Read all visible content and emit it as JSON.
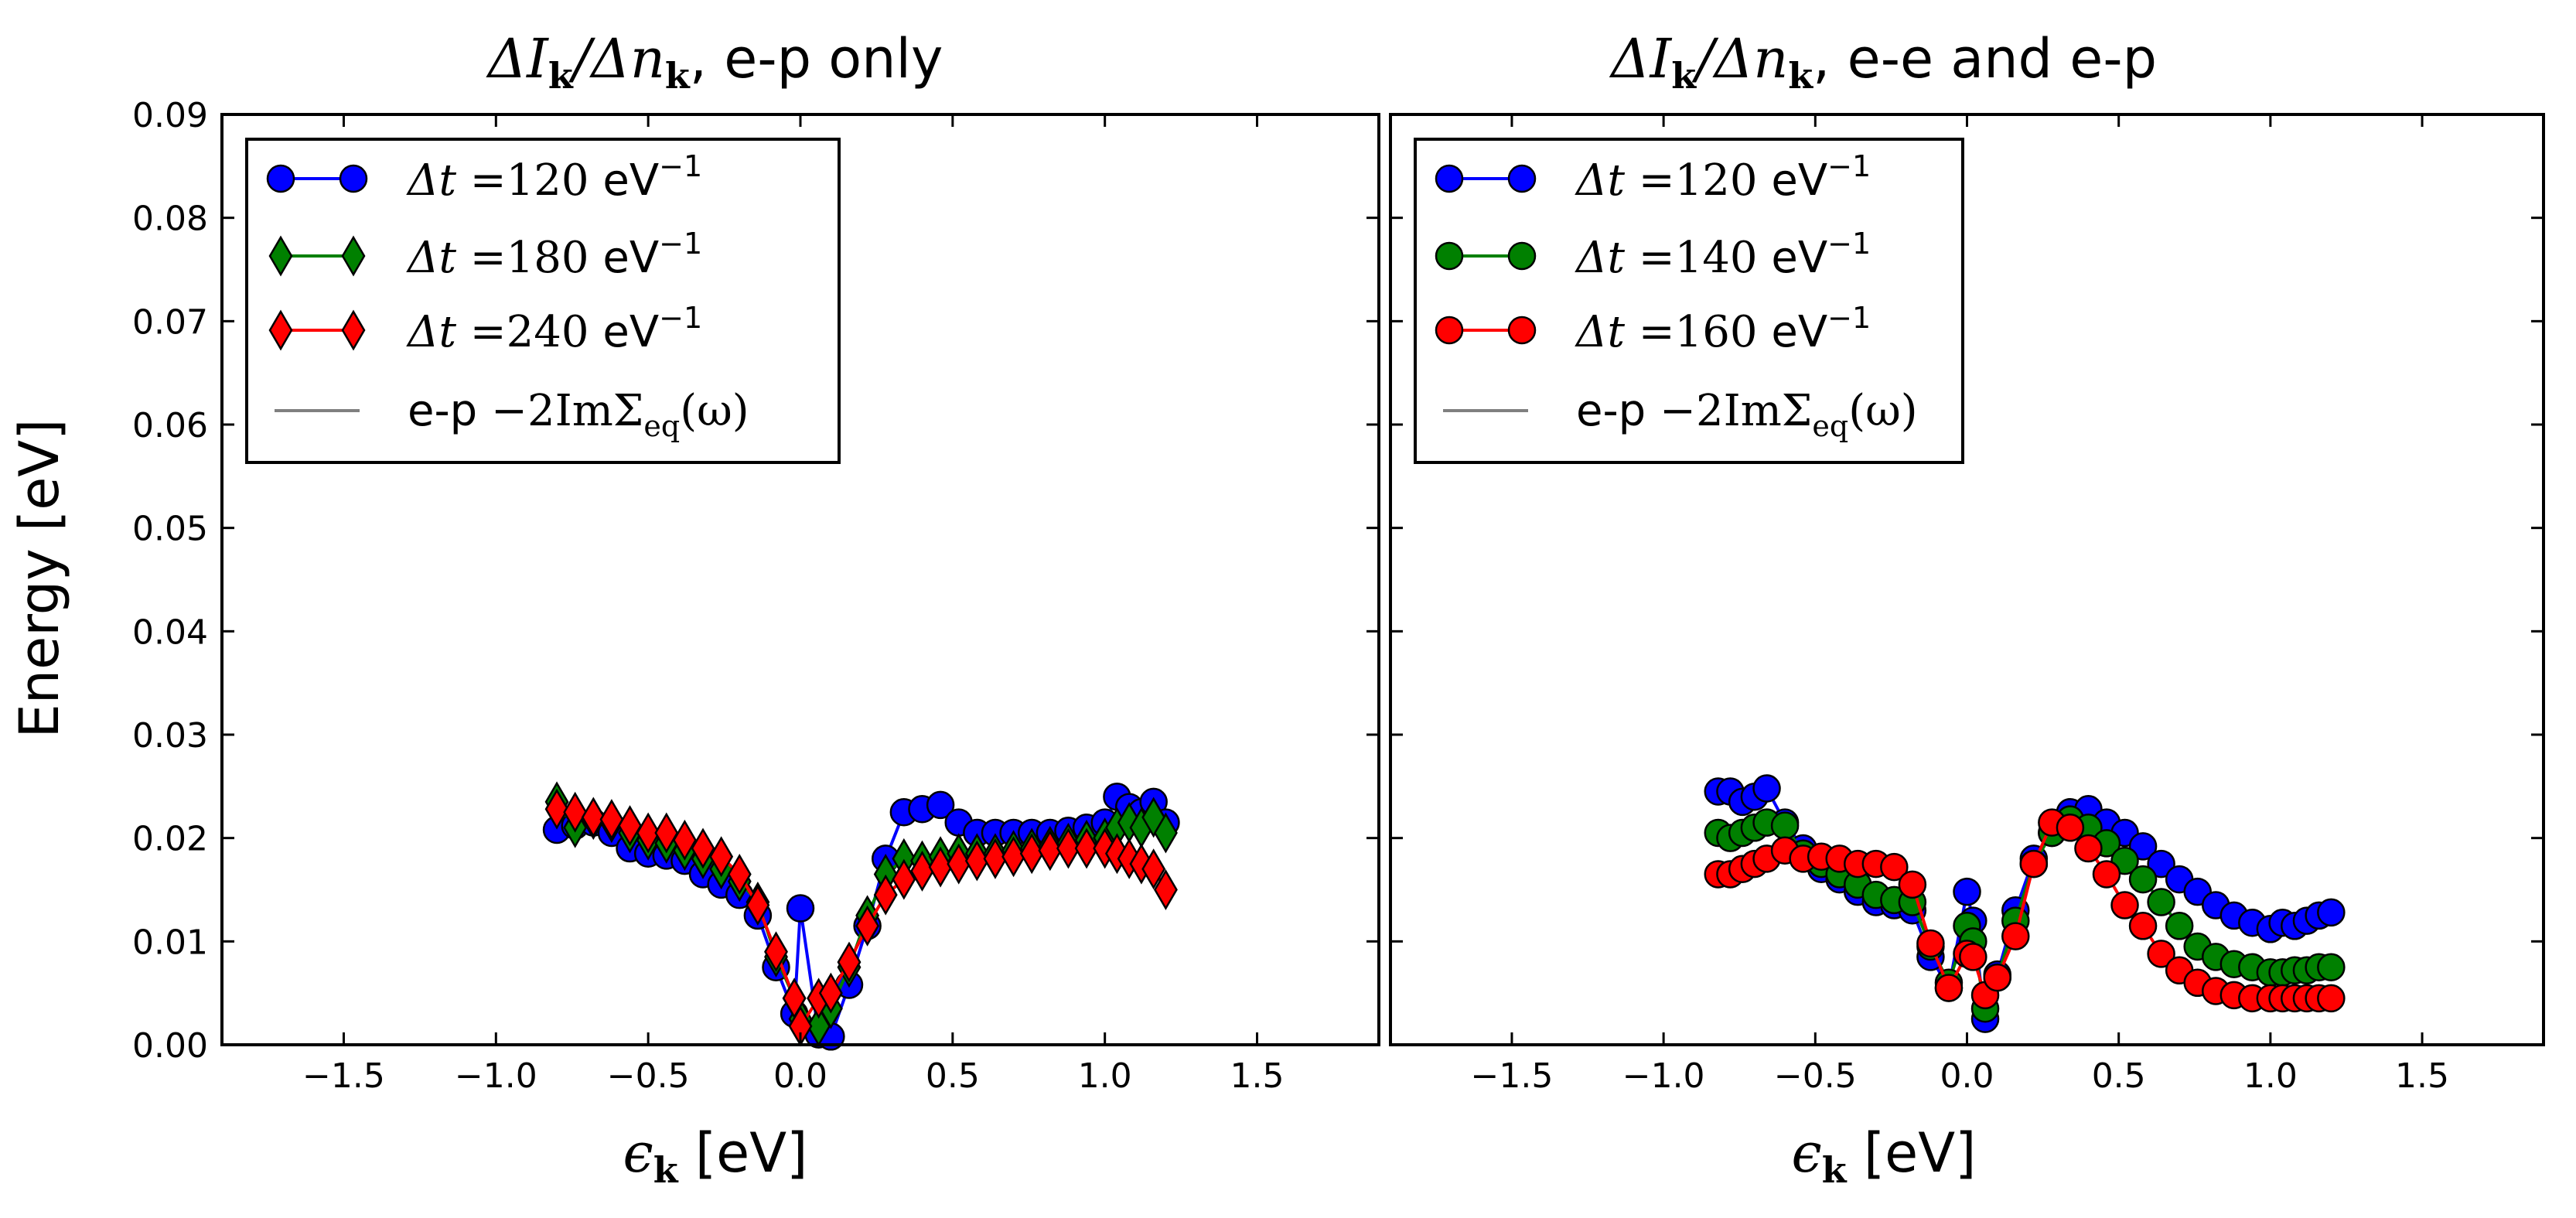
{
  "figure": {
    "ylabel": "Energy [eV]"
  },
  "chart_data": [
    {
      "type": "line",
      "title_math": "ΔI",
      "title_sub": "k",
      "title_mid": "/Δn",
      "title_sub2": "k",
      "title_rest": ", e-p only",
      "xlabel_math": "ϵ",
      "xlabel_sub": "k",
      "xlabel_rest": " [eV]",
      "xlim": [
        -1.9,
        1.9
      ],
      "ylim": [
        0,
        0.09
      ],
      "xticks": [
        "−1.5",
        "−1.0",
        "−0.5",
        "0.0",
        "0.5",
        "1.0",
        "1.5"
      ],
      "xtick_values": [
        -1.5,
        -1.0,
        -0.5,
        0.0,
        0.5,
        1.0,
        1.5
      ],
      "yticks": [
        "0.00",
        "0.01",
        "0.02",
        "0.03",
        "0.04",
        "0.05",
        "0.06",
        "0.07",
        "0.08",
        "0.09"
      ],
      "ytick_values": [
        0,
        0.01,
        0.02,
        0.03,
        0.04,
        0.05,
        0.06,
        0.07,
        0.08,
        0.09
      ],
      "legend_position": "top-left",
      "grid": false,
      "series": [
        {
          "label_prefix": "Δt =",
          "label_value": "120",
          "label_unit": " eV",
          "label_sup": "−1",
          "color": "#0000ff",
          "marker": "circle",
          "x": [
            -0.8,
            -0.74,
            -0.68,
            -0.62,
            -0.56,
            -0.5,
            -0.44,
            -0.38,
            -0.32,
            -0.26,
            -0.2,
            -0.14,
            -0.08,
            -0.02,
            0.0,
            0.06,
            0.1,
            0.16,
            0.22,
            0.28,
            0.34,
            0.4,
            0.46,
            0.52,
            0.58,
            0.64,
            0.7,
            0.76,
            0.82,
            0.88,
            0.94,
            1.0,
            1.04,
            1.08,
            1.12,
            1.16,
            1.2
          ],
          "y": [
            0.0208,
            0.0212,
            0.0215,
            0.0205,
            0.019,
            0.0185,
            0.0183,
            0.0178,
            0.0165,
            0.0155,
            0.0145,
            0.0125,
            0.0075,
            0.003,
            0.0132,
            0.001,
            0.0008,
            0.0058,
            0.0115,
            0.018,
            0.0225,
            0.0228,
            0.0232,
            0.0215,
            0.0205,
            0.0205,
            0.0205,
            0.0205,
            0.0205,
            0.0207,
            0.021,
            0.0215,
            0.024,
            0.023,
            0.0225,
            0.0235,
            0.0215
          ]
        },
        {
          "label_prefix": "Δt =",
          "label_value": "180",
          "label_unit": " eV",
          "label_sup": "−1",
          "color": "#008000",
          "marker": "diamond",
          "x": [
            -0.8,
            -0.74,
            -0.68,
            -0.62,
            -0.56,
            -0.5,
            -0.44,
            -0.38,
            -0.32,
            -0.26,
            -0.2,
            -0.14,
            -0.08,
            -0.02,
            0.0,
            0.06,
            0.1,
            0.16,
            0.22,
            0.28,
            0.34,
            0.4,
            0.46,
            0.52,
            0.58,
            0.64,
            0.7,
            0.76,
            0.82,
            0.88,
            0.94,
            1.0,
            1.04,
            1.08,
            1.12,
            1.16,
            1.2
          ],
          "y": [
            0.0235,
            0.021,
            0.0218,
            0.0215,
            0.0205,
            0.0198,
            0.0195,
            0.0188,
            0.018,
            0.017,
            0.0158,
            0.0138,
            0.0085,
            0.0045,
            0.0025,
            0.0018,
            0.0035,
            0.0075,
            0.0125,
            0.0165,
            0.018,
            0.0178,
            0.0182,
            0.0185,
            0.0185,
            0.0185,
            0.0188,
            0.019,
            0.0192,
            0.0195,
            0.0198,
            0.02,
            0.021,
            0.0215,
            0.021,
            0.022,
            0.0205
          ]
        },
        {
          "label_prefix": "Δt =",
          "label_value": "240",
          "label_unit": " eV",
          "label_sup": "−1",
          "color": "#ff0000",
          "marker": "diamond",
          "x": [
            -0.8,
            -0.74,
            -0.68,
            -0.62,
            -0.56,
            -0.5,
            -0.44,
            -0.38,
            -0.32,
            -0.26,
            -0.2,
            -0.14,
            -0.08,
            -0.02,
            0.0,
            0.06,
            0.1,
            0.16,
            0.22,
            0.28,
            0.34,
            0.4,
            0.46,
            0.52,
            0.58,
            0.64,
            0.7,
            0.76,
            0.82,
            0.88,
            0.94,
            1.0,
            1.04,
            1.08,
            1.12,
            1.16,
            1.2
          ],
          "y": [
            0.0228,
            0.0225,
            0.022,
            0.0218,
            0.0212,
            0.0205,
            0.0205,
            0.0198,
            0.019,
            0.0182,
            0.0165,
            0.0135,
            0.009,
            0.0045,
            0.0018,
            0.0045,
            0.005,
            0.008,
            0.0115,
            0.0145,
            0.016,
            0.0168,
            0.0172,
            0.0175,
            0.0178,
            0.018,
            0.0182,
            0.0185,
            0.0188,
            0.019,
            0.019,
            0.019,
            0.0185,
            0.018,
            0.0175,
            0.017,
            0.015
          ]
        },
        {
          "label_prefix": "e-p ",
          "label_math": "−2ImΣ",
          "label_sub": "eq",
          "label_rest": "(ω)",
          "color": "#808080",
          "marker": "none",
          "curve": "self-energy"
        }
      ]
    },
    {
      "type": "line",
      "title_math": "ΔI",
      "title_sub": "k",
      "title_mid": "/Δn",
      "title_sub2": "k",
      "title_rest": ", e-e and e-p",
      "xlabel_math": "ϵ",
      "xlabel_sub": "k",
      "xlabel_rest": " [eV]",
      "xlim": [
        -1.9,
        1.9
      ],
      "ylim": [
        0,
        0.09
      ],
      "xticks": [
        "−1.5",
        "−1.0",
        "−0.5",
        "0.0",
        "0.5",
        "1.0",
        "1.5"
      ],
      "xtick_values": [
        -1.5,
        -1.0,
        -0.5,
        0.0,
        0.5,
        1.0,
        1.5
      ],
      "legend_position": "top-left",
      "grid": false,
      "series": [
        {
          "label_prefix": "Δt =",
          "label_value": "120",
          "label_unit": " eV",
          "label_sup": "−1",
          "color": "#0000ff",
          "marker": "circle",
          "x": [
            -0.82,
            -0.78,
            -0.74,
            -0.7,
            -0.66,
            -0.6,
            -0.54,
            -0.48,
            -0.42,
            -0.36,
            -0.3,
            -0.24,
            -0.18,
            -0.12,
            -0.06,
            0.0,
            0.02,
            0.06,
            0.1,
            0.16,
            0.22,
            0.28,
            0.34,
            0.4,
            0.46,
            0.52,
            0.58,
            0.64,
            0.7,
            0.76,
            0.82,
            0.88,
            0.94,
            1.0,
            1.04,
            1.08,
            1.12,
            1.16,
            1.2
          ],
          "y": [
            0.0245,
            0.0245,
            0.0235,
            0.024,
            0.0248,
            0.0215,
            0.019,
            0.017,
            0.016,
            0.0148,
            0.0138,
            0.0135,
            0.013,
            0.0085,
            0.0055,
            0.0148,
            0.012,
            0.0025,
            0.0068,
            0.013,
            0.018,
            0.0205,
            0.0225,
            0.0228,
            0.0215,
            0.0205,
            0.0192,
            0.0175,
            0.016,
            0.0148,
            0.0135,
            0.0125,
            0.0118,
            0.0112,
            0.0118,
            0.0115,
            0.012,
            0.0125,
            0.0128
          ]
        },
        {
          "label_prefix": "Δt =",
          "label_value": "140",
          "label_unit": " eV",
          "label_sup": "−1",
          "color": "#008000",
          "marker": "circle",
          "x": [
            -0.82,
            -0.78,
            -0.74,
            -0.7,
            -0.66,
            -0.6,
            -0.54,
            -0.48,
            -0.42,
            -0.36,
            -0.3,
            -0.24,
            -0.18,
            -0.12,
            -0.06,
            0.0,
            0.02,
            0.06,
            0.1,
            0.16,
            0.22,
            0.28,
            0.34,
            0.4,
            0.46,
            0.52,
            0.58,
            0.64,
            0.7,
            0.76,
            0.82,
            0.88,
            0.94,
            1.0,
            1.04,
            1.08,
            1.12,
            1.16,
            1.2
          ],
          "y": [
            0.0205,
            0.02,
            0.0205,
            0.021,
            0.0215,
            0.0212,
            0.0185,
            0.0175,
            0.0165,
            0.0155,
            0.0145,
            0.014,
            0.0138,
            0.0095,
            0.006,
            0.0115,
            0.01,
            0.0035,
            0.0065,
            0.012,
            0.0175,
            0.0205,
            0.0218,
            0.021,
            0.0195,
            0.0178,
            0.016,
            0.0138,
            0.0115,
            0.0095,
            0.0085,
            0.0078,
            0.0075,
            0.007,
            0.007,
            0.0072,
            0.0072,
            0.0075,
            0.0075
          ]
        },
        {
          "label_prefix": "Δt =",
          "label_value": "160",
          "label_unit": " eV",
          "label_sup": "−1",
          "color": "#ff0000",
          "marker": "circle",
          "x": [
            -0.82,
            -0.78,
            -0.74,
            -0.7,
            -0.66,
            -0.6,
            -0.54,
            -0.48,
            -0.42,
            -0.36,
            -0.3,
            -0.24,
            -0.18,
            -0.12,
            -0.06,
            0.0,
            0.02,
            0.06,
            0.1,
            0.16,
            0.22,
            0.28,
            0.34,
            0.4,
            0.46,
            0.52,
            0.58,
            0.64,
            0.7,
            0.76,
            0.82,
            0.88,
            0.94,
            1.0,
            1.04,
            1.08,
            1.12,
            1.16,
            1.2
          ],
          "y": [
            0.0165,
            0.0165,
            0.017,
            0.0175,
            0.018,
            0.0188,
            0.018,
            0.0182,
            0.018,
            0.0175,
            0.0175,
            0.0172,
            0.0155,
            0.0098,
            0.0055,
            0.0088,
            0.0085,
            0.0048,
            0.0065,
            0.0105,
            0.0175,
            0.0215,
            0.021,
            0.019,
            0.0165,
            0.0135,
            0.0115,
            0.0088,
            0.0072,
            0.006,
            0.0052,
            0.0048,
            0.0045,
            0.0045,
            0.0045,
            0.0045,
            0.0045,
            0.0045,
            0.0045
          ]
        },
        {
          "label_prefix": "e-p ",
          "label_math": "−2ImΣ",
          "label_sub": "eq",
          "label_rest": "(ω)",
          "color": "#808080",
          "marker": "none",
          "curve": "self-energy"
        }
      ]
    }
  ]
}
